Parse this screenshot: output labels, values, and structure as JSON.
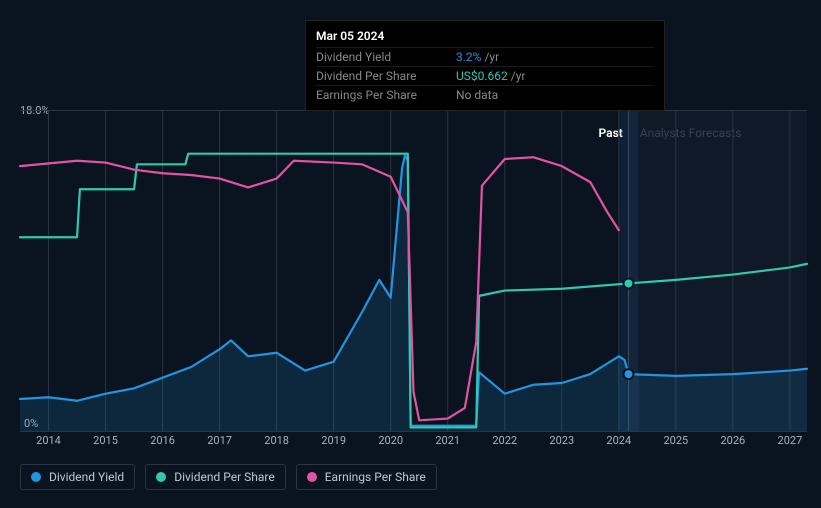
{
  "tooltip": {
    "date": "Mar 05 2024",
    "rows": [
      {
        "label": "Dividend Yield",
        "value": "3.2%",
        "unit": "/yr",
        "colorClass": "val-blue"
      },
      {
        "label": "Dividend Per Share",
        "value": "US$0.662",
        "unit": "/yr",
        "colorClass": "val-teal"
      },
      {
        "label": "Earnings Per Share",
        "value": "No data",
        "unit": "",
        "colorClass": "val-grey"
      }
    ]
  },
  "chart": {
    "type": "line",
    "y_axis": {
      "min": 0,
      "max": 18,
      "top_label": "18.0%",
      "bottom_label": "0%"
    },
    "x_axis": {
      "min": 2013.5,
      "max": 2027.3,
      "ticks": [
        2014,
        2015,
        2016,
        2017,
        2018,
        2019,
        2020,
        2021,
        2022,
        2023,
        2024,
        2025,
        2026,
        2027
      ]
    },
    "past_label": "Past",
    "forecast_label": "Analysts Forecasts",
    "now_x": 2024.17,
    "background_color": "#0a1420",
    "grid_color": "#2a3540",
    "series": [
      {
        "name": "Dividend Yield",
        "color": "#2394df",
        "line_width": 2.2,
        "area": true,
        "points": [
          [
            2013.5,
            1.8
          ],
          [
            2014,
            1.9
          ],
          [
            2014.5,
            1.7
          ],
          [
            2015,
            2.1
          ],
          [
            2015.5,
            2.4
          ],
          [
            2016,
            3.0
          ],
          [
            2016.5,
            3.6
          ],
          [
            2017,
            4.6
          ],
          [
            2017.2,
            5.1
          ],
          [
            2017.5,
            4.2
          ],
          [
            2018,
            4.4
          ],
          [
            2018.5,
            3.4
          ],
          [
            2019,
            3.9
          ],
          [
            2019.5,
            6.7
          ],
          [
            2019.8,
            8.5
          ],
          [
            2020,
            7.5
          ],
          [
            2020.2,
            14.8
          ],
          [
            2020.25,
            15.5
          ],
          [
            2020.3,
            15.2
          ],
          [
            2020.35,
            0.3
          ],
          [
            2021,
            0.3
          ],
          [
            2021.5,
            0.3
          ],
          [
            2021.55,
            3.3
          ],
          [
            2022,
            2.1
          ],
          [
            2022.5,
            2.6
          ],
          [
            2023,
            2.7
          ],
          [
            2023.5,
            3.2
          ],
          [
            2024,
            4.2
          ],
          [
            2024.1,
            4.0
          ],
          [
            2024.17,
            3.2
          ],
          [
            2025,
            3.1
          ],
          [
            2026,
            3.2
          ],
          [
            2027,
            3.4
          ],
          [
            2027.3,
            3.5
          ]
        ]
      },
      {
        "name": "Dividend Per Share",
        "color": "#31c8b0",
        "line_width": 2.2,
        "area": false,
        "points": [
          [
            2013.5,
            10.9
          ],
          [
            2014.5,
            10.9
          ],
          [
            2014.55,
            13.6
          ],
          [
            2015.5,
            13.6
          ],
          [
            2015.55,
            15.0
          ],
          [
            2016.4,
            15.0
          ],
          [
            2016.45,
            15.6
          ],
          [
            2020.3,
            15.6
          ],
          [
            2020.35,
            0.2
          ],
          [
            2021.5,
            0.2
          ],
          [
            2021.55,
            7.6
          ],
          [
            2022,
            7.9
          ],
          [
            2023,
            8.0
          ],
          [
            2024.17,
            8.3
          ],
          [
            2025,
            8.5
          ],
          [
            2026,
            8.8
          ],
          [
            2027,
            9.2
          ],
          [
            2027.3,
            9.4
          ]
        ]
      },
      {
        "name": "Earnings Per Share",
        "color": "#e353a1",
        "line_width": 2.2,
        "area": false,
        "points": [
          [
            2013.5,
            14.9
          ],
          [
            2014.5,
            15.2
          ],
          [
            2015,
            15.1
          ],
          [
            2015.5,
            14.7
          ],
          [
            2016,
            14.5
          ],
          [
            2016.5,
            14.4
          ],
          [
            2017,
            14.2
          ],
          [
            2017.5,
            13.7
          ],
          [
            2018,
            14.2
          ],
          [
            2018.3,
            15.2
          ],
          [
            2019,
            15.1
          ],
          [
            2019.5,
            15.0
          ],
          [
            2020,
            14.3
          ],
          [
            2020.3,
            12.3
          ],
          [
            2020.4,
            2.2
          ],
          [
            2020.5,
            0.6
          ],
          [
            2021,
            0.7
          ],
          [
            2021.3,
            1.3
          ],
          [
            2021.5,
            5.0
          ],
          [
            2021.6,
            13.8
          ],
          [
            2022,
            15.3
          ],
          [
            2022.5,
            15.4
          ],
          [
            2023,
            14.9
          ],
          [
            2023.5,
            14.0
          ],
          [
            2023.8,
            12.3
          ],
          [
            2024,
            11.3
          ]
        ]
      }
    ],
    "markers": [
      {
        "x": 2024.17,
        "y": 3.2,
        "color": "#2394df"
      },
      {
        "x": 2024.17,
        "y": 8.3,
        "color": "#31c8b0"
      }
    ]
  },
  "legend": [
    {
      "label": "Dividend Yield",
      "color": "#2394df"
    },
    {
      "label": "Dividend Per Share",
      "color": "#31c8b0"
    },
    {
      "label": "Earnings Per Share",
      "color": "#e353a1"
    }
  ]
}
